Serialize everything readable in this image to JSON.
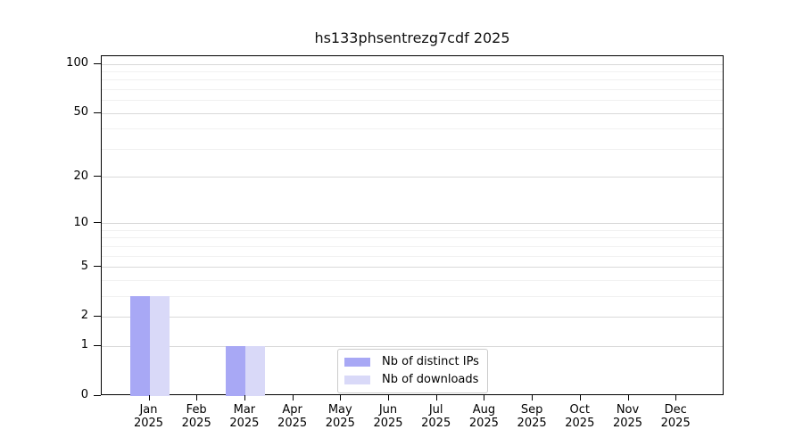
{
  "figure": {
    "background": "#ffffff"
  },
  "chart_data": {
    "type": "bar",
    "title": "hs133phsentrezg7cdf 2025",
    "xlabel": "",
    "ylabel": "",
    "categories": [
      {
        "month": "Jan",
        "year": "2025"
      },
      {
        "month": "Feb",
        "year": "2025"
      },
      {
        "month": "Mar",
        "year": "2025"
      },
      {
        "month": "Apr",
        "year": "2025"
      },
      {
        "month": "May",
        "year": "2025"
      },
      {
        "month": "Jun",
        "year": "2025"
      },
      {
        "month": "Jul",
        "year": "2025"
      },
      {
        "month": "Aug",
        "year": "2025"
      },
      {
        "month": "Sep",
        "year": "2025"
      },
      {
        "month": "Oct",
        "year": "2025"
      },
      {
        "month": "Nov",
        "year": "2025"
      },
      {
        "month": "Dec",
        "year": "2025"
      }
    ],
    "series": [
      {
        "name": "Nb of distinct IPs",
        "color": "#a8a8f5",
        "values": [
          3,
          0,
          1,
          0,
          0,
          0,
          0,
          0,
          0,
          0,
          0,
          0
        ]
      },
      {
        "name": "Nb of downloads",
        "color": "#d9d9f8",
        "values": [
          3,
          0,
          1,
          0,
          0,
          0,
          0,
          0,
          0,
          0,
          0,
          0
        ]
      }
    ],
    "yscale": "log1p",
    "ylim": [
      0,
      112
    ],
    "yticks": [
      0,
      1,
      2,
      5,
      10,
      20,
      50,
      100
    ],
    "yticks_minor": [
      3,
      4,
      6,
      7,
      8,
      9,
      30,
      40,
      60,
      70,
      80,
      90
    ],
    "grid": true,
    "legend": {
      "position": "lower center"
    },
    "colors": {
      "grid_major": "#d9d9d9",
      "grid_minor": "#f1f1f1",
      "axis": "#000000",
      "legend_border": "#cccccc",
      "title_text": "#111111",
      "tick_text": "#000000"
    }
  }
}
